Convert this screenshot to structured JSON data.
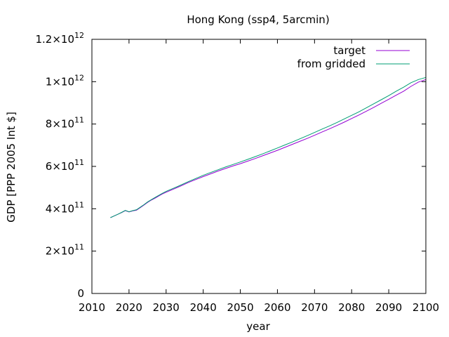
{
  "chart_data": {
    "type": "line",
    "title": "Hong Kong (ssp4, 5arcmin)",
    "xlabel": "year",
    "ylabel": "GDP [PPP 2005 Int $]",
    "xlim": [
      2010,
      2100
    ],
    "ylim": [
      0,
      1200000000000.0
    ],
    "xticks": [
      "2010",
      "2020",
      "2030",
      "2040",
      "2050",
      "2060",
      "2070",
      "2080",
      "2090",
      "2100"
    ],
    "yticks": [
      {
        "mantissa": "0",
        "exp": ""
      },
      {
        "mantissa": "2×10",
        "exp": "11"
      },
      {
        "mantissa": "4×10",
        "exp": "11"
      },
      {
        "mantissa": "6×10",
        "exp": "11"
      },
      {
        "mantissa": "8×10",
        "exp": "11"
      },
      {
        "mantissa": "1×10",
        "exp": "12"
      },
      {
        "mantissa": "1.2×10",
        "exp": "12"
      }
    ],
    "ytick_values": [
      0,
      200000000000.0,
      400000000000.0,
      600000000000.0,
      800000000000.0,
      1000000000000.0,
      1200000000000.0
    ],
    "xtick_values": [
      2010,
      2020,
      2030,
      2040,
      2050,
      2060,
      2070,
      2080,
      2090,
      2100
    ],
    "legend_position": "top-right",
    "series": [
      {
        "name": "target",
        "color": "#9400d3",
        "x": [
          2015,
          2016,
          2017,
          2018,
          2019,
          2020,
          2021,
          2022,
          2023,
          2024,
          2025,
          2026,
          2027,
          2028,
          2029,
          2030,
          2032,
          2034,
          2036,
          2038,
          2040,
          2042,
          2044,
          2046,
          2048,
          2050,
          2052,
          2054,
          2056,
          2058,
          2060,
          2062,
          2064,
          2066,
          2068,
          2070,
          2072,
          2074,
          2076,
          2078,
          2080,
          2082,
          2084,
          2086,
          2088,
          2090,
          2092,
          2094,
          2096,
          2098,
          2100
        ],
        "y": [
          358000000000.0,
          366000000000.0,
          374000000000.0,
          382000000000.0,
          391000000000.0,
          385000000000.0,
          390000000000.0,
          393000000000.0,
          405000000000.0,
          417000000000.0,
          430000000000.0,
          441000000000.0,
          450000000000.0,
          460000000000.0,
          470000000000.0,
          478000000000.0,
          493000000000.0,
          508000000000.0,
          524000000000.0,
          538000000000.0,
          552000000000.0,
          565000000000.0,
          578000000000.0,
          590000000000.0,
          602000000000.0,
          613000000000.0,
          625000000000.0,
          637000000000.0,
          650000000000.0,
          663000000000.0,
          676000000000.0,
          690000000000.0,
          704000000000.0,
          718000000000.0,
          732000000000.0,
          747000000000.0,
          762000000000.0,
          777000000000.0,
          793000000000.0,
          809000000000.0,
          826000000000.0,
          843000000000.0,
          861000000000.0,
          879000000000.0,
          898000000000.0,
          917000000000.0,
          936000000000.0,
          955000000000.0,
          978000000000.0,
          998000000000.0,
          1010000000000.0
        ]
      },
      {
        "name": "from gridded",
        "color": "#009e73",
        "x": [
          2015,
          2016,
          2017,
          2018,
          2019,
          2020,
          2021,
          2022,
          2023,
          2024,
          2025,
          2026,
          2027,
          2028,
          2029,
          2030,
          2032,
          2034,
          2036,
          2038,
          2040,
          2042,
          2044,
          2046,
          2048,
          2050,
          2052,
          2054,
          2056,
          2058,
          2060,
          2062,
          2064,
          2066,
          2068,
          2070,
          2072,
          2074,
          2076,
          2078,
          2080,
          2082,
          2084,
          2086,
          2088,
          2090,
          2092,
          2094,
          2096,
          2098,
          2100
        ],
        "y": [
          358000000000.0,
          366000000000.0,
          374000000000.0,
          383000000000.0,
          392000000000.0,
          386000000000.0,
          391000000000.0,
          395000000000.0,
          407000000000.0,
          419000000000.0,
          432000000000.0,
          443000000000.0,
          453000000000.0,
          463000000000.0,
          473000000000.0,
          482000000000.0,
          497000000000.0,
          512000000000.0,
          528000000000.0,
          543000000000.0,
          558000000000.0,
          571000000000.0,
          584000000000.0,
          597000000000.0,
          609000000000.0,
          621000000000.0,
          633000000000.0,
          646000000000.0,
          659000000000.0,
          673000000000.0,
          687000000000.0,
          701000000000.0,
          715000000000.0,
          730000000000.0,
          745000000000.0,
          760000000000.0,
          776000000000.0,
          791000000000.0,
          807000000000.0,
          824000000000.0,
          841000000000.0,
          858000000000.0,
          877000000000.0,
          896000000000.0,
          915000000000.0,
          934000000000.0,
          955000000000.0,
          974000000000.0,
          995000000000.0,
          1010000000000.0,
          1020000000000.0
        ]
      }
    ]
  }
}
